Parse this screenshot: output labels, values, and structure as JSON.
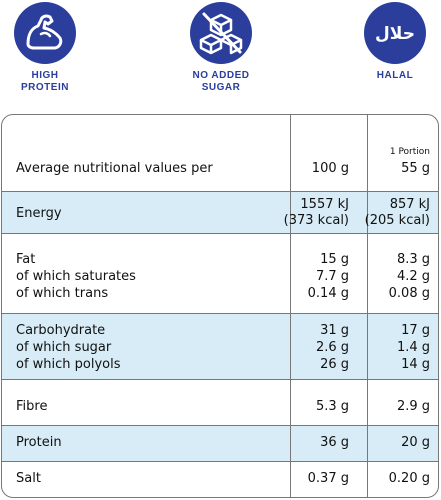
{
  "badges": [
    {
      "icon": "flexed-arm-icon",
      "label_line1": "HIGH",
      "label_line2": "PROTEIN"
    },
    {
      "icon": "no-sugar-cubes-icon",
      "label_line1": "NO ADDED",
      "label_line2": "SUGAR"
    },
    {
      "icon": "halal-arabic-icon",
      "icon_text": "حلال",
      "label_line1": "HALAL",
      "label_line2": ""
    }
  ],
  "table": {
    "header": {
      "label": "Average nutritional values per",
      "col2": "100 g",
      "col3_small": "1 Portion",
      "col3": "55 g"
    },
    "energy": {
      "label": "Energy",
      "col2_l1": "1557 kJ",
      "col2_l2": "(373 kcal)",
      "col3_l1": "857 kJ",
      "col3_l2": "(205 kcal)"
    },
    "fat": {
      "labels": [
        "Fat",
        "of which saturates",
        "of which trans"
      ],
      "col2": [
        "15 g",
        "7.7 g",
        "0.14 g"
      ],
      "col3": [
        "8.3 g",
        "4.2 g",
        "0.08 g"
      ]
    },
    "carbs": {
      "labels": [
        "Carbohydrate",
        "of which sugar",
        "of which polyols"
      ],
      "col2": [
        "31 g",
        "2.6 g",
        "26 g"
      ],
      "col3": [
        "17 g",
        "1.4 g",
        "14 g"
      ]
    },
    "fibre": {
      "label": "Fibre",
      "col2": "5.3 g",
      "col3": "2.9 g"
    },
    "protein": {
      "label": "Protein",
      "col2": "36 g",
      "col3": "20 g"
    },
    "salt": {
      "label": "Salt",
      "col2": "0.37 g",
      "col3": "0.20 g"
    }
  },
  "colors": {
    "brand_blue": "#2b3e9b",
    "row_blue": "#d7ecf7",
    "border": "#777777"
  }
}
